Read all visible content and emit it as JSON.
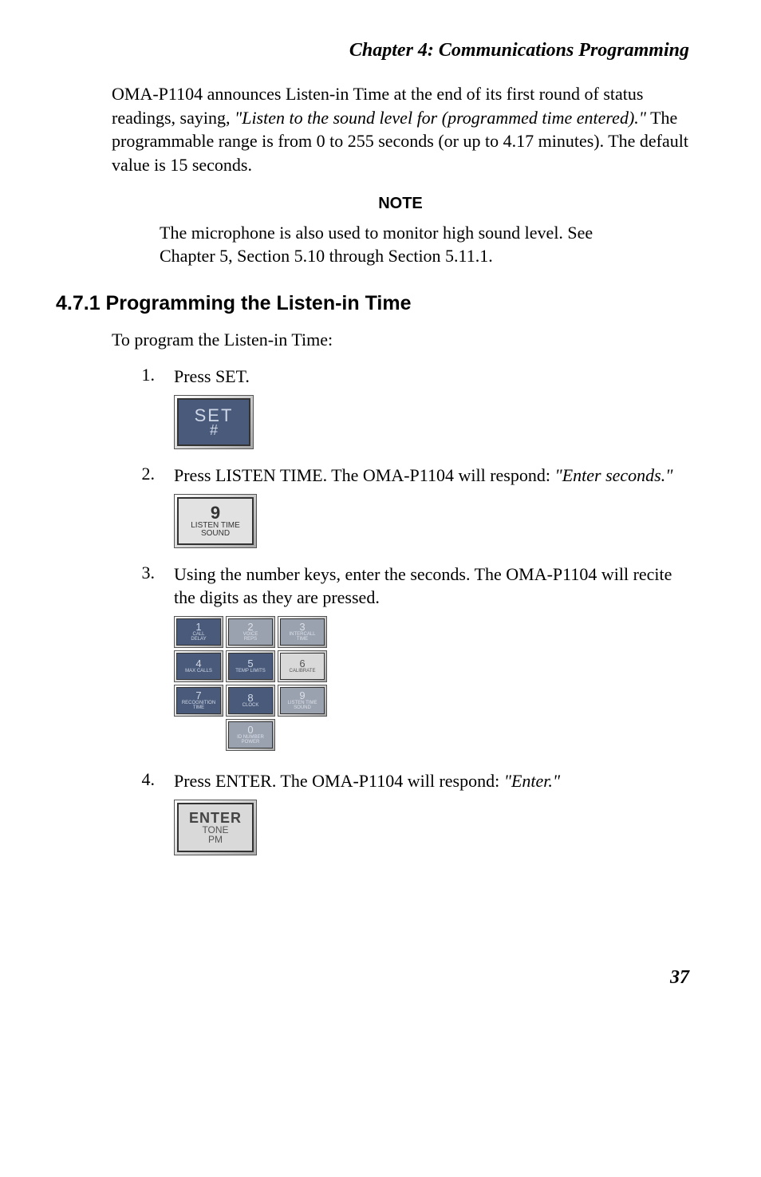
{
  "chapter_heading": "Chapter 4: Communications Programming",
  "para1_a": "OMA-P1104 announces Listen-in Time at the end of its first round of status readings, saying, ",
  "para1_b": "\"Listen to the sound level for (programmed time entered).\"",
  "para1_c": " The programmable range is from 0 to 255 seconds (or up to 4.17 minutes). The default value is 15 seconds.",
  "note_heading": "NOTE",
  "note_body": "The microphone is also used to monitor high sound level. See Chapter 5, Section 5.10 through Section 5.11.1.",
  "section_heading": "4.7.1  Programming the Listen-in Time",
  "intro_line": "To program the Listen-in Time:",
  "step1_num": "1.",
  "step1_text": "Press SET.",
  "key_set_main": "SET",
  "key_set_sub": "#",
  "step2_num": "2.",
  "step2_text_a": "Press LISTEN TIME. The OMA-P1104 will respond: ",
  "step2_text_b": "\"Enter seconds.\"",
  "key9_main": "9",
  "key9_sub1": "LISTEN TIME",
  "key9_sub2": "SOUND",
  "step3_num": "3.",
  "step3_text": "Using the number keys, enter the seconds. The OMA-P1104 will recite the digits as they are pressed.",
  "keypad": [
    [
      {
        "num": "1",
        "l1": "CALL",
        "l2": "DELAY",
        "cls": "dark"
      },
      {
        "num": "2",
        "l1": "VOICE",
        "l2": "REPS",
        "cls": "mid"
      },
      {
        "num": "3",
        "l1": "INTERCALL",
        "l2": "TIME",
        "cls": "mid"
      }
    ],
    [
      {
        "num": "4",
        "l1": "MAX CALLS",
        "l2": "",
        "cls": "dark"
      },
      {
        "num": "5",
        "l1": "TEMP LIMITS",
        "l2": "",
        "cls": "dark"
      },
      {
        "num": "6",
        "l1": "CALIBRATE",
        "l2": "",
        "cls": ""
      }
    ],
    [
      {
        "num": "7",
        "l1": "RECOGNITION",
        "l2": "TIME",
        "cls": "dark"
      },
      {
        "num": "8",
        "l1": "CLOCK",
        "l2": "",
        "cls": "dark"
      },
      {
        "num": "9",
        "l1": "LISTEN TIME",
        "l2": "SOUND",
        "cls": "mid"
      }
    ],
    [
      null,
      {
        "num": "0",
        "l1": "ID NUMBER",
        "l2": "POWER",
        "cls": "mid"
      },
      null
    ]
  ],
  "step4_num": "4.",
  "step4_text_a": "Press ENTER. The OMA-P1104 will respond: ",
  "step4_text_b": "\"Enter.\"",
  "key_enter_main": "ENTER",
  "key_enter_sub1": "TONE",
  "key_enter_sub2": "PM",
  "page_number": "37"
}
